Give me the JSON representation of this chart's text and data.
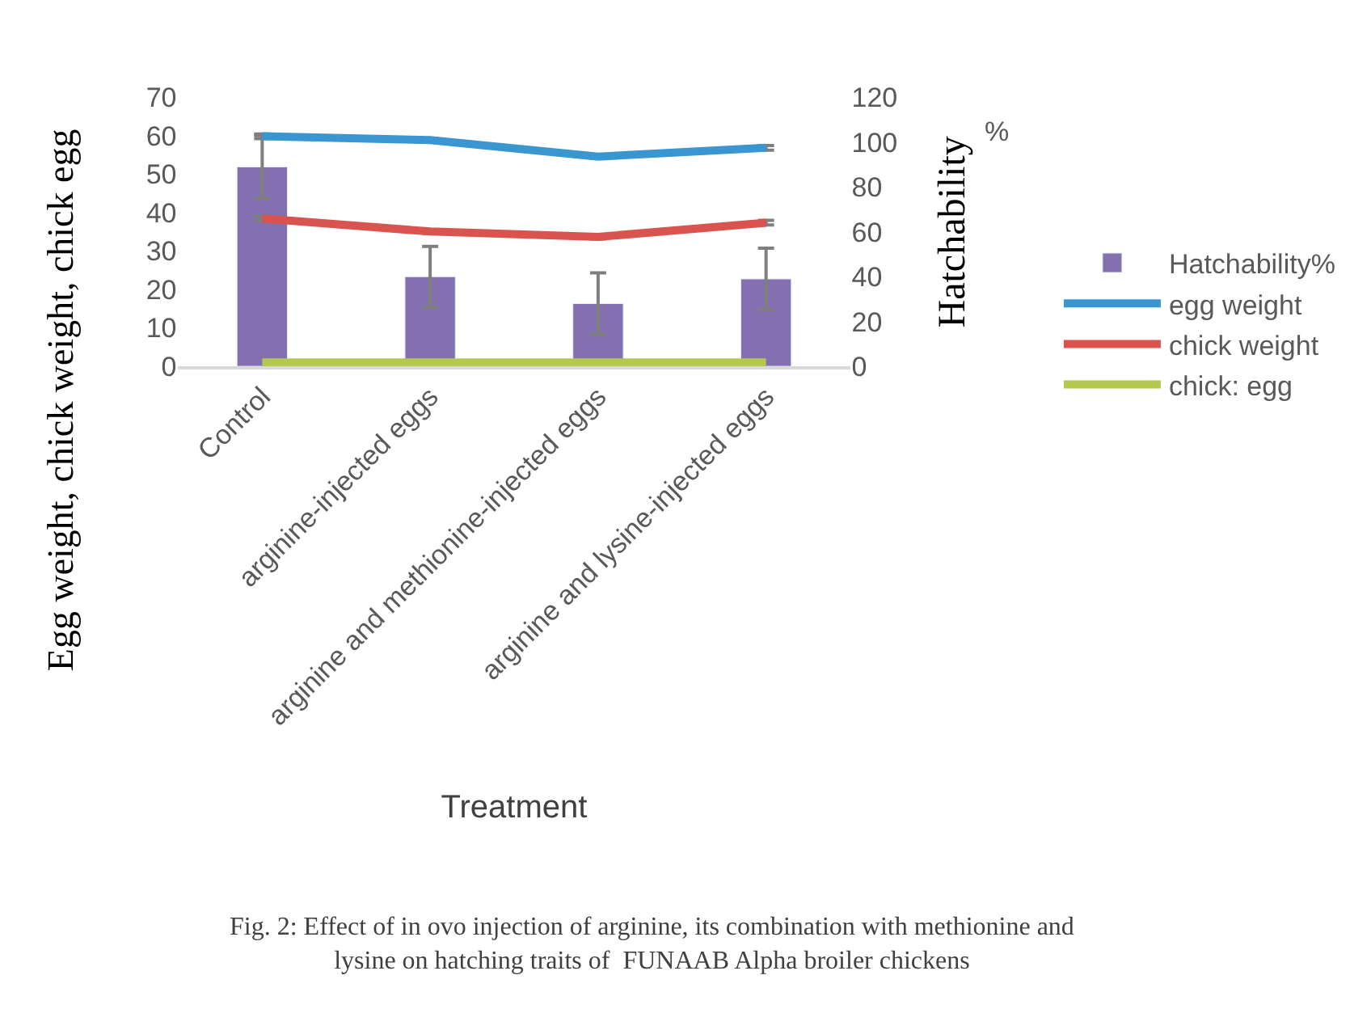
{
  "chart_data": {
    "type": "bar",
    "categories": [
      "Control",
      "arginine-injected eggs",
      "arginine and methionine-injected eggs",
      "arginine and lysine-injected eggs"
    ],
    "xlabel": "Treatment",
    "ylabel": "Egg weight, chick weight, chick egg",
    "y2label": "Hatchability",
    "ylim": [
      0,
      70
    ],
    "yticks": [
      0,
      10,
      20,
      30,
      40,
      50,
      60,
      70
    ],
    "y2lim": [
      0,
      120
    ],
    "y2ticks": [
      0,
      20,
      40,
      60,
      80,
      100,
      120
    ],
    "legend": "right",
    "series": [
      {
        "name": "Hatchability%",
        "axis": "y2",
        "color": "#8470b0",
        "values": [
          89,
          40,
          28,
          39
        ],
        "errors": [
          14,
          13.5,
          13.7,
          13.7
        ]
      },
      {
        "name": "egg weight",
        "type": "line",
        "color": "#3a96d0",
        "values": [
          59.9,
          58.9,
          54.6,
          56.9
        ],
        "errors": [
          0.6,
          0.5,
          0.5,
          0.6
        ]
      },
      {
        "name": "chick weight",
        "type": "line",
        "color": "#d9534f",
        "values": [
          38.5,
          35.1,
          33.7,
          37.4
        ],
        "errors": [
          0.6,
          0.5,
          0.5,
          0.6
        ]
      },
      {
        "name": "chick: egg",
        "type": "line",
        "color": "#b5c84e",
        "values": [
          1,
          1,
          1,
          1
        ]
      }
    ],
    "annotations": [
      "%",
      "Fig. 2: Effect of in ovo injection of arginine, its combination with methionine and\nlysine on hatching traits of  FUNAAB Alpha broiler chickens"
    ]
  }
}
